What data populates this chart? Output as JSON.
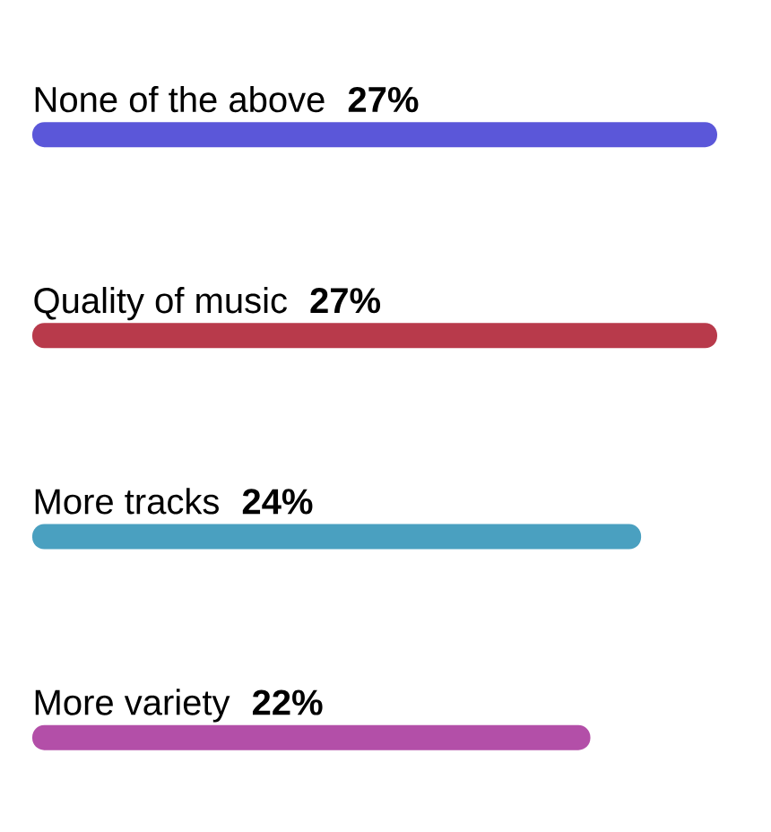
{
  "chart_data": {
    "type": "bar",
    "orientation": "horizontal",
    "categories": [
      "None of the above",
      "Quality of music",
      "More tracks",
      "More variety"
    ],
    "values": [
      27,
      27,
      24,
      22
    ],
    "value_labels": [
      "27%",
      "27%",
      "24%",
      "22%"
    ],
    "colors": [
      "#5b57d9",
      "#b83a4b",
      "#4aa0c0",
      "#b34fa8"
    ]
  }
}
